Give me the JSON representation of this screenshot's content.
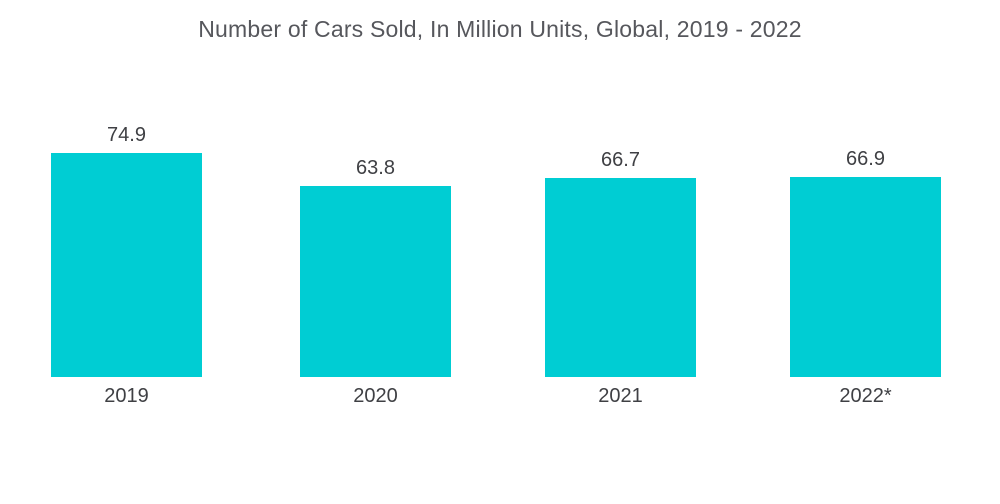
{
  "title": "Number of Cars Sold, In Million Units, Global, 2019 - 2022",
  "colors": {
    "bar": "#00CDD3",
    "title_text": "#56575C",
    "label_text": "#3F4044",
    "background": "#FFFFFF"
  },
  "chart_data": {
    "type": "bar",
    "title": "Number of Cars Sold, In Million Units, Global, 2019 - 2022",
    "categories": [
      "2019",
      "2020",
      "2021",
      "2022*"
    ],
    "values": [
      74.9,
      63.8,
      66.7,
      66.9
    ],
    "value_labels": [
      "74.9",
      "63.8",
      "66.7",
      "66.9"
    ],
    "xlabel": "",
    "ylabel": "",
    "ylim": [
      0,
      80
    ],
    "grid": false,
    "legend": false,
    "bar_color": "#00CDD3",
    "label_position": "above-bar",
    "footnote_marker_on_last_category": "*"
  }
}
